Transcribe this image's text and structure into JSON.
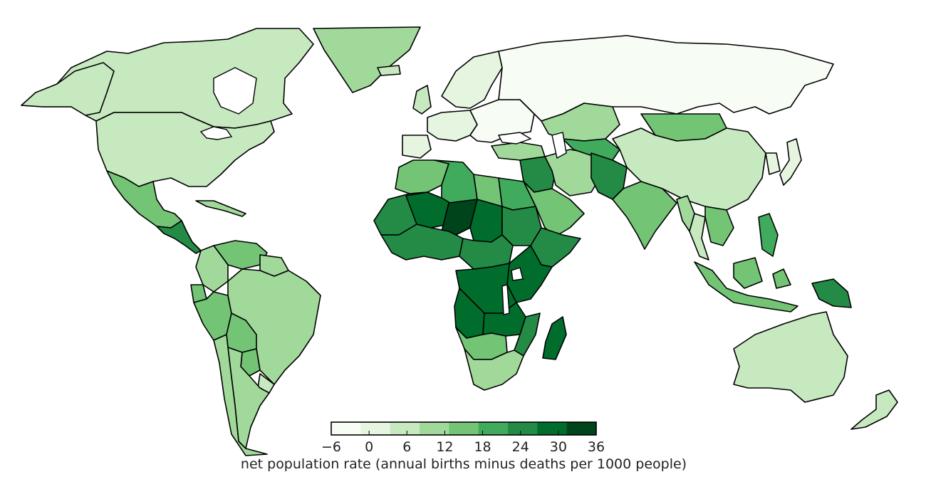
{
  "legend": {
    "label": "net population rate (annual births minus deaths per 1000 people)",
    "ticks": [
      "−6",
      "0",
      "6",
      "12",
      "18",
      "24",
      "30",
      "36"
    ],
    "min": -6,
    "max": 36,
    "colors": [
      "#f7fcf5",
      "#e5f5e0",
      "#c7e9c0",
      "#a1d99b",
      "#74c476",
      "#41ab5d",
      "#238b45",
      "#006d2c",
      "#00441b"
    ]
  },
  "regions": [
    {
      "name": "Greenland",
      "rate": 8
    },
    {
      "name": "Canada",
      "rate": 4
    },
    {
      "name": "Alaska",
      "rate": 6
    },
    {
      "name": "United States",
      "rate": 6
    },
    {
      "name": "Mexico",
      "rate": 14
    },
    {
      "name": "Central America",
      "rate": 22
    },
    {
      "name": "Caribbean",
      "rate": 10
    },
    {
      "name": "Venezuela",
      "rate": 14
    },
    {
      "name": "Guianas",
      "rate": 10
    },
    {
      "name": "Colombia",
      "rate": 12
    },
    {
      "name": "Ecuador",
      "rate": 14
    },
    {
      "name": "Peru",
      "rate": 14
    },
    {
      "name": "Brazil",
      "rate": 8
    },
    {
      "name": "Bolivia",
      "rate": 16
    },
    {
      "name": "Paraguay",
      "rate": 14
    },
    {
      "name": "Argentina",
      "rate": 10
    },
    {
      "name": "Chile",
      "rate": 8
    },
    {
      "name": "Uruguay",
      "rate": 4
    },
    {
      "name": "Iceland",
      "rate": 6
    },
    {
      "name": "United Kingdom",
      "rate": 4
    },
    {
      "name": "Scandinavia",
      "rate": 2
    },
    {
      "name": "Western Europe",
      "rate": 1
    },
    {
      "name": "Iberia",
      "rate": 2
    },
    {
      "name": "Eastern Europe",
      "rate": -2
    },
    {
      "name": "Russia",
      "rate": -3
    },
    {
      "name": "Kazakhstan",
      "rate": 12
    },
    {
      "name": "Mongolia",
      "rate": 14
    },
    {
      "name": "China",
      "rate": 5
    },
    {
      "name": "Japan",
      "rate": 0
    },
    {
      "name": "Korea",
      "rate": 2
    },
    {
      "name": "Turkey",
      "rate": 12
    },
    {
      "name": "Middle East",
      "rate": 22
    },
    {
      "name": "Arabian Peninsula",
      "rate": 16
    },
    {
      "name": "Iran",
      "rate": 12
    },
    {
      "name": "Central Asia",
      "rate": 18
    },
    {
      "name": "Afghanistan and Pakistan",
      "rate": 22
    },
    {
      "name": "India",
      "rate": 14
    },
    {
      "name": "Myanmar",
      "rate": 10
    },
    {
      "name": "Thailand",
      "rate": 6
    },
    {
      "name": "Indochina",
      "rate": 16
    },
    {
      "name": "Philippines",
      "rate": 20
    },
    {
      "name": "Indonesia",
      "rate": 14
    },
    {
      "name": "Papua New Guinea",
      "rate": 22
    },
    {
      "name": "Australia",
      "rate": 6
    },
    {
      "name": "New Zealand",
      "rate": 7
    },
    {
      "name": "Madagascar",
      "rate": 28
    },
    {
      "name": "North Africa West",
      "rate": 14
    },
    {
      "name": "Algeria",
      "rate": 18
    },
    {
      "name": "Libya",
      "rate": 16
    },
    {
      "name": "Egypt",
      "rate": 18
    },
    {
      "name": "Sahel West",
      "rate": 26
    },
    {
      "name": "Mali",
      "rate": 30
    },
    {
      "name": "Niger",
      "rate": 36
    },
    {
      "name": "West Africa",
      "rate": 26
    },
    {
      "name": "Chad",
      "rate": 28
    },
    {
      "name": "Sudan",
      "rate": 24
    },
    {
      "name": "Horn of Africa",
      "rate": 26
    },
    {
      "name": "Central Africa",
      "rate": 24
    },
    {
      "name": "East Africa",
      "rate": 30
    },
    {
      "name": "DR Congo",
      "rate": 28
    },
    {
      "name": "Angola",
      "rate": 28
    },
    {
      "name": "Zambia and Malawi",
      "rate": 28
    },
    {
      "name": "Namibia and Botswana",
      "rate": 16
    },
    {
      "name": "South Africa",
      "rate": 10
    },
    {
      "name": "Mozambique",
      "rate": 24
    }
  ]
}
